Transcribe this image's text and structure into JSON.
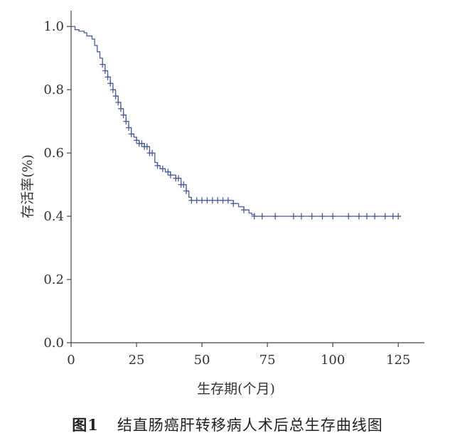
{
  "chart_data": {
    "type": "line",
    "title": "",
    "xlabel": "生存期(个月)",
    "ylabel": "存活率(%)",
    "xlim": [
      0,
      135
    ],
    "ylim": [
      0,
      1.05
    ],
    "x_ticks": [
      "0",
      "25",
      "50",
      "75",
      "100",
      "125"
    ],
    "y_ticks": [
      "0.0",
      "0.2",
      "0.4",
      "0.6",
      "0.8",
      "1.0"
    ],
    "grid": false,
    "legend": "none",
    "line_color": "#4a5aa0",
    "series": [
      {
        "x": [
          0,
          1.5,
          3,
          5,
          6,
          8,
          9,
          10,
          11,
          12,
          13,
          14,
          15,
          16,
          17,
          18,
          19,
          20,
          21,
          22,
          23,
          24,
          25,
          26,
          28,
          30,
          32,
          33,
          34,
          36,
          38,
          40,
          42,
          44,
          45,
          46,
          48,
          52,
          56,
          60,
          62,
          64,
          66,
          68,
          69,
          70,
          75,
          85,
          100,
          110,
          126
        ],
        "y": [
          1.0,
          0.99,
          0.985,
          0.98,
          0.97,
          0.96,
          0.94,
          0.92,
          0.9,
          0.88,
          0.86,
          0.84,
          0.82,
          0.8,
          0.78,
          0.76,
          0.74,
          0.72,
          0.7,
          0.68,
          0.66,
          0.65,
          0.64,
          0.63,
          0.62,
          0.6,
          0.57,
          0.56,
          0.55,
          0.54,
          0.53,
          0.52,
          0.5,
          0.48,
          0.46,
          0.45,
          0.45,
          0.45,
          0.45,
          0.45,
          0.44,
          0.43,
          0.42,
          0.41,
          0.405,
          0.4,
          0.4,
          0.4,
          0.4,
          0.4,
          0.4
        ]
      }
    ],
    "censored_x": [
      12,
      13,
      14,
      15,
      16,
      17,
      18,
      19,
      20,
      21,
      22,
      23,
      25,
      26,
      27,
      28,
      29,
      30,
      31,
      33,
      35,
      37,
      38,
      40,
      41,
      42,
      43,
      44,
      46,
      48,
      50,
      52,
      54,
      56,
      58,
      60,
      62,
      66,
      70,
      73,
      78,
      85,
      88,
      92,
      96,
      100,
      106,
      110,
      113,
      116,
      120,
      123,
      125
    ]
  },
  "caption": {
    "figure_label": "图1",
    "text": "结直肠癌肝转移病人术后总生存曲线图"
  }
}
